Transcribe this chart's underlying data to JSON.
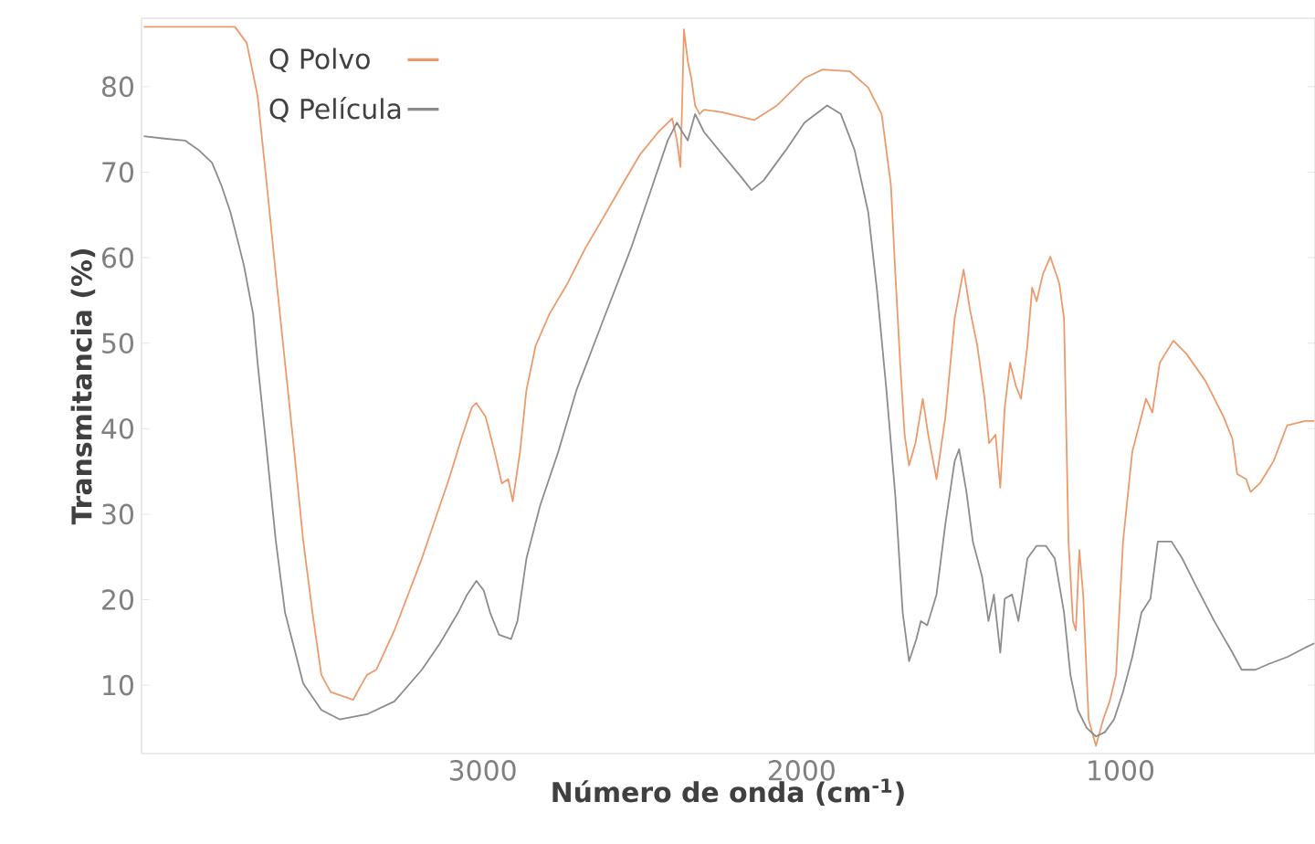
{
  "chart_data": {
    "type": "line",
    "xlabel": "Número de onda (cm$^{-1}$)",
    "ylabel": "Transmitancia (%)",
    "xlim": [
      4070,
      390
    ],
    "ylim": [
      2,
      88
    ],
    "xticks": [
      3000,
      2000,
      1000
    ],
    "yticks": [
      10,
      20,
      30,
      40,
      50,
      60,
      70,
      80
    ],
    "legend": "top left",
    "marker": "none",
    "line_style": "solid",
    "grid": false,
    "x": [
      4063,
      3934,
      3777,
      3740,
      3706,
      3677,
      3649,
      3620,
      3591,
      3563,
      3534,
      3506,
      3477,
      3406,
      3386,
      3363,
      3334,
      3277,
      3191,
      3106,
      3063,
      3034,
      3020,
      2991,
      2963,
      2940,
      2920,
      2906,
      2883,
      2863,
      2834,
      2791,
      2734,
      2677,
      2620,
      2563,
      2506,
      2449,
      2406,
      2391,
      2380,
      2374,
      2369,
      2357,
      2346,
      2334,
      2320,
      2306,
      2249,
      2149,
      2077,
      1991,
      1934,
      1849,
      1791,
      1749,
      1720,
      1706,
      1691,
      1677,
      1663,
      1643,
      1620,
      1603,
      1577,
      1549,
      1520,
      1492,
      1472,
      1449,
      1426,
      1412,
      1392,
      1377,
      1363,
      1346,
      1329,
      1312,
      1292,
      1277,
      1263,
      1243,
      1220,
      1192,
      1177,
      1163,
      1149,
      1140,
      1129,
      1117,
      1100,
      1077,
      1054,
      1034,
      1014,
      992,
      963,
      920,
      900,
      877,
      834,
      792,
      734,
      677,
      649,
      634,
      606,
      592,
      563,
      520,
      477,
      420,
      392
    ],
    "series": [
      {
        "name": "Q Polvo",
        "color": "#ec9a6c",
        "values": [
          87.0,
          87.0,
          87.0,
          85.1,
          78.9,
          68.5,
          58.1,
          47.7,
          37.3,
          26.9,
          18.5,
          11.2,
          9.2,
          8.3,
          9.7,
          11.2,
          11.8,
          16.4,
          24.8,
          34.1,
          39.3,
          42.5,
          43.0,
          41.4,
          37.3,
          33.6,
          34.1,
          31.5,
          37.3,
          44.5,
          49.7,
          53.4,
          57.0,
          61.2,
          64.8,
          68.5,
          72.1,
          74.7,
          76.3,
          73.7,
          70.6,
          78.9,
          86.7,
          83.0,
          81.0,
          77.8,
          76.8,
          77.3,
          77.0,
          76.1,
          77.8,
          81.0,
          82.0,
          81.8,
          79.9,
          76.8,
          68.5,
          58.1,
          47.7,
          39.3,
          35.7,
          38.3,
          43.5,
          39.3,
          34.1,
          41.4,
          52.9,
          58.6,
          53.9,
          49.7,
          43.5,
          38.3,
          39.3,
          33.1,
          42.5,
          47.7,
          45.1,
          43.5,
          49.7,
          56.5,
          54.9,
          58.1,
          60.1,
          57.0,
          52.9,
          26.8,
          17.5,
          16.4,
          25.8,
          20.6,
          6.0,
          2.9,
          6.0,
          8.1,
          11.2,
          26.8,
          37.3,
          43.5,
          41.9,
          47.7,
          50.3,
          48.7,
          45.6,
          41.4,
          38.8,
          34.7,
          34.1,
          32.6,
          33.6,
          36.2,
          40.4,
          40.9,
          40.9
        ]
      },
      {
        "name": "Q Película",
        "color": "#8c8c8c",
        "x": [
          4063,
          3991,
          3934,
          3891,
          3849,
          3820,
          3791,
          3763,
          3749,
          3720,
          3706,
          3677,
          3649,
          3620,
          3563,
          3506,
          3449,
          3363,
          3277,
          3191,
          3134,
          3077,
          3049,
          3020,
          2997,
          2977,
          2949,
          2911,
          2891,
          2863,
          2820,
          2763,
          2706,
          2620,
          2534,
          2477,
          2420,
          2391,
          2374,
          2357,
          2334,
          2306,
          2249,
          2191,
          2157,
          2120,
          2049,
          1991,
          1920,
          1877,
          1834,
          1791,
          1763,
          1734,
          1706,
          1683,
          1663,
          1640,
          1626,
          1606,
          1577,
          1549,
          1520,
          1506,
          1483,
          1463,
          1434,
          1414,
          1397,
          1377,
          1363,
          1340,
          1320,
          1292,
          1263,
          1234,
          1206,
          1177,
          1157,
          1134,
          1106,
          1077,
          1049,
          1020,
          992,
          963,
          934,
          906,
          883,
          840,
          806,
          763,
          706,
          649,
          620,
          577,
          534,
          477,
          420,
          392
        ],
        "values": [
          74.2,
          73.9,
          73.7,
          72.6,
          71.1,
          68.5,
          65.3,
          61.2,
          59.1,
          53.4,
          47.7,
          37.3,
          26.9,
          18.5,
          10.2,
          7.1,
          6.0,
          6.6,
          8.1,
          11.8,
          14.9,
          18.5,
          20.6,
          22.2,
          21.1,
          18.5,
          15.9,
          15.4,
          17.5,
          24.8,
          31.0,
          37.3,
          44.5,
          52.9,
          61.2,
          67.4,
          73.7,
          75.8,
          74.7,
          73.7,
          76.8,
          74.7,
          72.1,
          69.5,
          67.9,
          69.0,
          72.6,
          75.8,
          77.8,
          76.8,
          72.6,
          65.3,
          56.0,
          44.5,
          32.1,
          18.5,
          12.8,
          15.4,
          17.5,
          17.0,
          20.6,
          28.9,
          36.2,
          37.6,
          32.6,
          26.8,
          22.7,
          17.5,
          20.6,
          13.8,
          20.1,
          20.6,
          17.5,
          24.8,
          26.3,
          26.3,
          24.8,
          18.5,
          11.2,
          7.1,
          5.0,
          4.0,
          4.5,
          6.0,
          9.2,
          13.3,
          18.5,
          20.1,
          26.8,
          26.8,
          24.8,
          21.6,
          17.5,
          13.8,
          11.8,
          11.8,
          12.5,
          13.3,
          14.4,
          14.9
        ]
      }
    ]
  }
}
